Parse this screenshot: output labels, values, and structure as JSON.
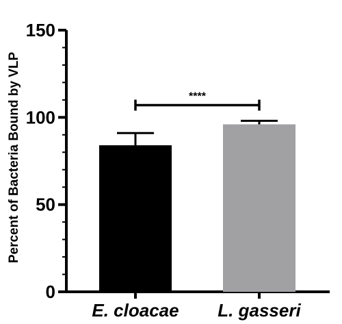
{
  "chart_data": {
    "type": "bar",
    "title": "",
    "xlabel": "",
    "ylabel": "Percent of Bacteria Bound by VLP",
    "ylim": [
      0,
      150
    ],
    "yticks": [
      "0",
      "50",
      "100",
      "150"
    ],
    "categories": [
      "E. cloacae",
      "L. gasseri"
    ],
    "values": [
      84,
      96
    ],
    "errors": [
      7,
      2
    ],
    "colors": [
      "#000000",
      "#a1a1a4"
    ],
    "significance": {
      "label": "****",
      "y": 107
    },
    "grid": false,
    "legend": "none"
  }
}
